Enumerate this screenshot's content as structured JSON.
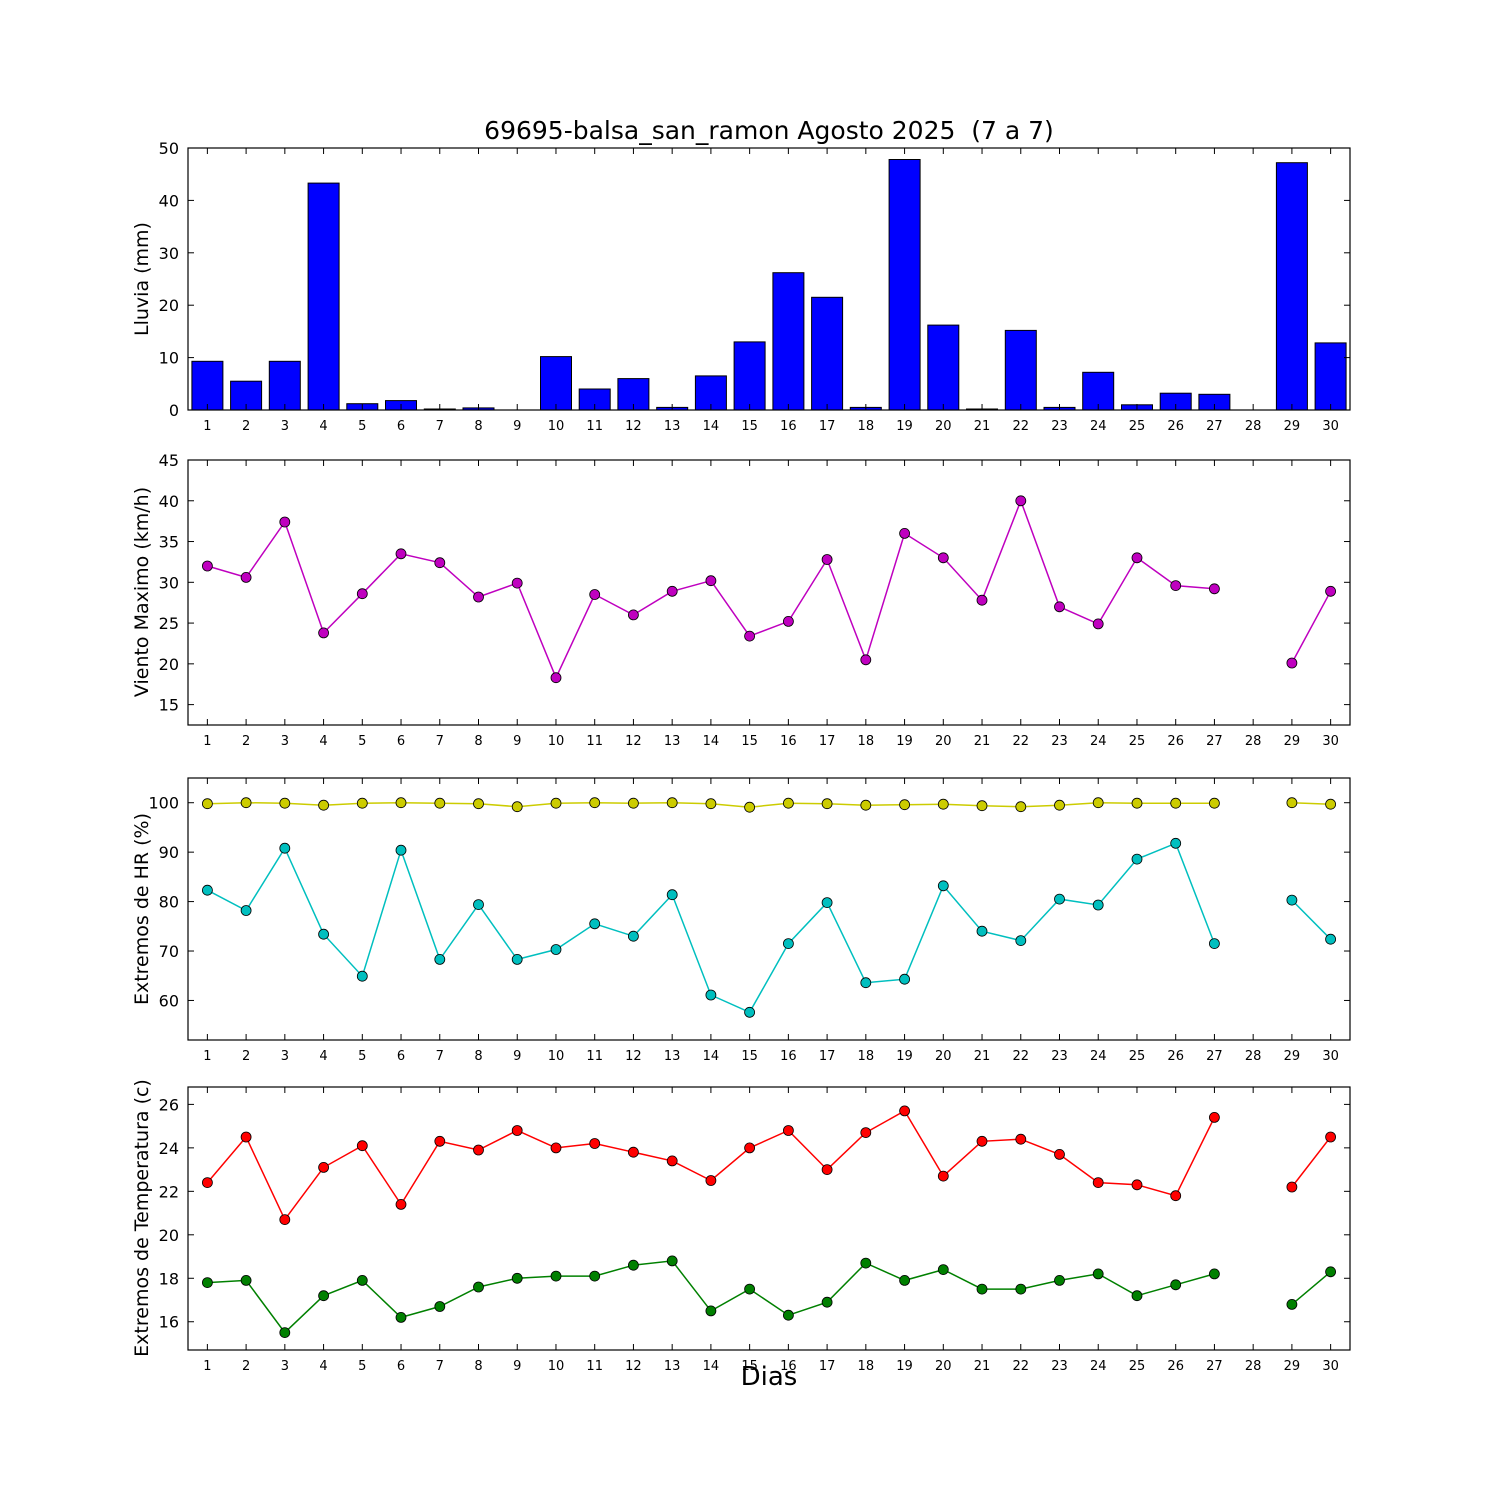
{
  "title": "69695-balsa_san_ramon Agosto 2025  (7 a 7)",
  "xlabel": "Dias",
  "chart_data": [
    {
      "id": "lluvia",
      "type": "bar",
      "ylabel": "Lluvia (mm)",
      "color": "#0000ff",
      "x": [
        1,
        2,
        3,
        4,
        5,
        6,
        7,
        8,
        9,
        10,
        11,
        12,
        13,
        14,
        15,
        16,
        17,
        18,
        19,
        20,
        21,
        22,
        23,
        24,
        25,
        26,
        27,
        28,
        29,
        30
      ],
      "values": [
        9.3,
        5.5,
        9.3,
        43.3,
        1.2,
        1.8,
        0.2,
        0.4,
        0.0,
        10.2,
        4.0,
        6.0,
        0.5,
        6.5,
        13.0,
        26.2,
        21.5,
        0.5,
        47.8,
        16.2,
        0.2,
        15.2,
        0.5,
        7.2,
        1.0,
        3.2,
        3.0,
        null,
        47.2,
        12.8
      ],
      "ylim": [
        0,
        50
      ],
      "yticks": [
        0,
        10,
        20,
        30,
        40,
        50
      ]
    },
    {
      "id": "viento",
      "type": "line",
      "ylabel": "Viento Maximo (km/h)",
      "x": [
        1,
        2,
        3,
        4,
        5,
        6,
        7,
        8,
        9,
        10,
        11,
        12,
        13,
        14,
        15,
        16,
        17,
        18,
        19,
        20,
        21,
        22,
        23,
        24,
        25,
        26,
        27,
        28,
        29,
        30
      ],
      "series": [
        {
          "name": "viento-maximo",
          "color": "#bf00bf",
          "values": [
            32.0,
            30.6,
            37.4,
            23.8,
            28.6,
            33.5,
            32.4,
            28.2,
            29.9,
            18.3,
            28.5,
            26.0,
            28.9,
            30.2,
            23.4,
            25.2,
            32.8,
            20.5,
            36.0,
            33.0,
            27.8,
            40.0,
            27.0,
            24.9,
            33.0,
            29.6,
            29.2,
            null,
            20.1,
            28.9
          ]
        }
      ],
      "ylim": [
        12.5,
        45
      ],
      "yticks": [
        15,
        20,
        25,
        30,
        35,
        40,
        45
      ]
    },
    {
      "id": "hr",
      "type": "line",
      "ylabel": "Extremos de HR (%)",
      "x": [
        1,
        2,
        3,
        4,
        5,
        6,
        7,
        8,
        9,
        10,
        11,
        12,
        13,
        14,
        15,
        16,
        17,
        18,
        19,
        20,
        21,
        22,
        23,
        24,
        25,
        26,
        27,
        28,
        29,
        30
      ],
      "series": [
        {
          "name": "hr-maxima",
          "color": "#cccc00",
          "values": [
            99.8,
            100.0,
            99.9,
            99.5,
            99.9,
            100.0,
            99.9,
            99.8,
            99.2,
            99.9,
            100.0,
            99.9,
            100.0,
            99.8,
            99.1,
            99.9,
            99.8,
            99.5,
            99.6,
            99.7,
            99.4,
            99.2,
            99.5,
            100.0,
            99.9,
            99.9,
            99.9,
            null,
            100.0,
            99.7
          ]
        },
        {
          "name": "hr-minima",
          "color": "#00bfbf",
          "values": [
            82.3,
            78.2,
            90.8,
            73.4,
            64.9,
            90.4,
            68.3,
            79.4,
            68.3,
            70.3,
            75.5,
            73.0,
            81.4,
            61.1,
            57.6,
            71.5,
            79.8,
            63.6,
            64.3,
            83.2,
            74.0,
            72.1,
            80.5,
            79.3,
            88.6,
            91.8,
            71.5,
            null,
            80.3,
            72.4
          ]
        }
      ],
      "ylim": [
        52,
        105
      ],
      "yticks": [
        60,
        70,
        80,
        90,
        100
      ]
    },
    {
      "id": "temperatura",
      "type": "line",
      "ylabel": "Extremos de Temperatura (c)",
      "x": [
        1,
        2,
        3,
        4,
        5,
        6,
        7,
        8,
        9,
        10,
        11,
        12,
        13,
        14,
        15,
        16,
        17,
        18,
        19,
        20,
        21,
        22,
        23,
        24,
        25,
        26,
        27,
        28,
        29,
        30
      ],
      "series": [
        {
          "name": "temperatura-maxima",
          "color": "#ff0000",
          "values": [
            22.4,
            24.5,
            20.7,
            23.1,
            24.1,
            21.4,
            24.3,
            23.9,
            24.8,
            24.0,
            24.2,
            23.8,
            23.4,
            22.5,
            24.0,
            24.8,
            23.0,
            24.7,
            25.7,
            22.7,
            24.3,
            24.4,
            23.7,
            22.4,
            22.3,
            21.8,
            25.4,
            null,
            22.2,
            24.5
          ]
        },
        {
          "name": "temperatura-minima",
          "color": "#008000",
          "values": [
            17.8,
            17.9,
            15.5,
            17.2,
            17.9,
            16.2,
            16.7,
            17.6,
            18.0,
            18.1,
            18.1,
            18.6,
            18.8,
            16.5,
            17.5,
            16.3,
            16.9,
            18.7,
            17.9,
            18.4,
            17.5,
            17.5,
            17.9,
            18.2,
            17.2,
            17.7,
            18.2,
            null,
            16.8,
            18.3
          ]
        }
      ],
      "ylim": [
        14.7,
        26.8
      ],
      "yticks": [
        16,
        18,
        20,
        22,
        24,
        26
      ]
    }
  ]
}
